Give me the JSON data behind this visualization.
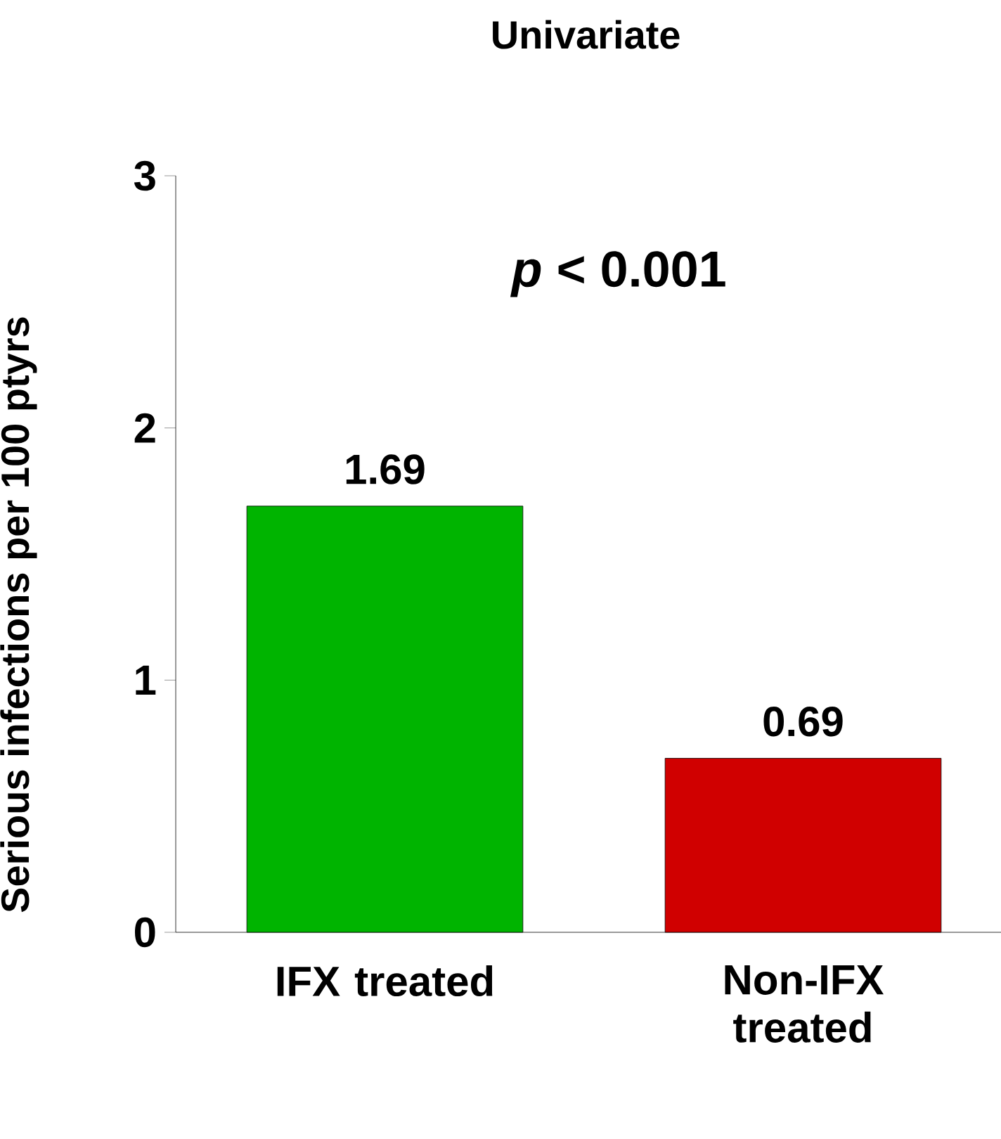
{
  "chart_data": {
    "type": "bar",
    "title": "Univariate",
    "ylabel": "Serious infections per 100 ptyrs",
    "categories": [
      "IFX treated",
      "Non-IFX treated"
    ],
    "values": [
      1.69,
      0.69
    ],
    "colors": [
      "#00b400",
      "#d00000"
    ],
    "ylim": [
      0,
      3
    ],
    "yticks": [
      0,
      1,
      2,
      3
    ],
    "data_labels": true,
    "annotations": [
      "*p* < 0.001"
    ]
  }
}
